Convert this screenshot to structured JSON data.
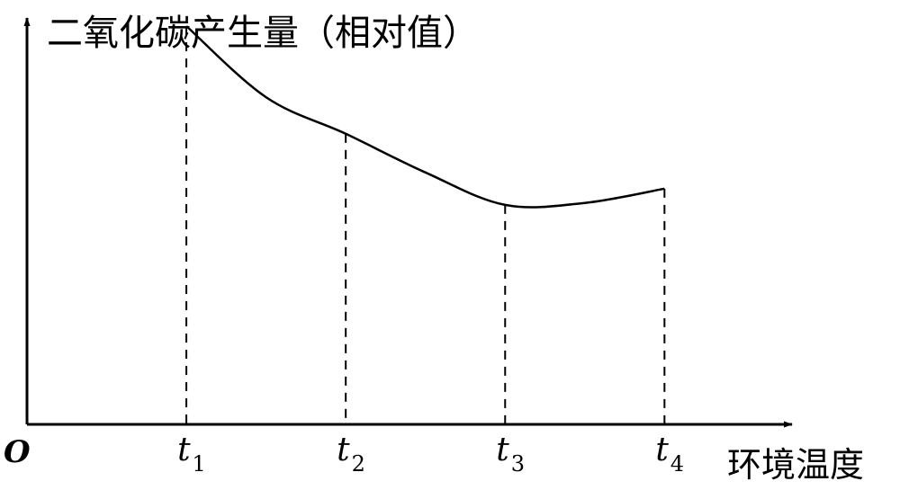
{
  "chart_data": {
    "type": "line",
    "ylabel": "二氧化碳产生量（相对值）",
    "xlabel": "环境温度",
    "origin_label": "O",
    "x_ticks": [
      {
        "main": "t",
        "sub": "1"
      },
      {
        "main": "t",
        "sub": "2"
      },
      {
        "main": "t",
        "sub": "3"
      },
      {
        "main": "t",
        "sub": "4"
      }
    ],
    "xlim": [
      0,
      4.8
    ],
    "ylim": [
      0,
      10
    ],
    "grid": false,
    "series": [
      {
        "x": [
          1,
          1.5,
          2,
          2.5,
          3,
          3.5,
          4
        ],
        "y": [
          9.8,
          8.05,
          7.15,
          6.2,
          5.4,
          5.45,
          5.8
        ]
      }
    ],
    "guides": [
      {
        "x": 1,
        "y": 9.8
      },
      {
        "x": 2,
        "y": 7.15
      },
      {
        "x": 3,
        "y": 5.4
      },
      {
        "x": 4,
        "y": 5.8
      }
    ]
  }
}
